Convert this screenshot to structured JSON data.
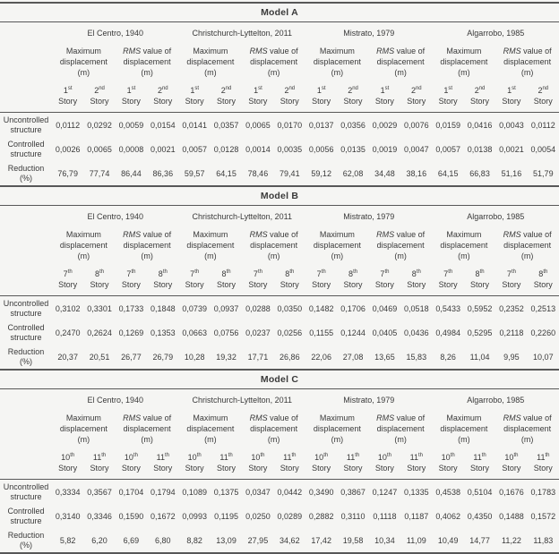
{
  "document": {
    "background_color": "#f5f5f3",
    "text_color": "#3a3a3a",
    "rule_color": "#585858"
  },
  "table": {
    "earthquakes": [
      "El Centro, 1940",
      "Christchurch-Lyttelton, 2011",
      "Mistrato, 1979",
      "Algarrobo, 1985"
    ],
    "measure_headers": [
      {
        "lines": [
          "Maximum",
          "displacement",
          "(m)"
        ],
        "italic_lead": ""
      },
      {
        "lines": [
          "RMS value of",
          "displacement",
          "(m)"
        ],
        "italic_lead": "RMS"
      }
    ],
    "story_word": "Story",
    "row_labels": [
      {
        "lines": [
          "Uncontrolled",
          "structure"
        ]
      },
      {
        "lines": [
          "Controlled",
          "structure"
        ]
      },
      {
        "lines": [
          "Reduction",
          "(%)"
        ]
      }
    ],
    "models": [
      {
        "title": "Model A",
        "stories": [
          {
            "num": "1",
            "suffix": "st"
          },
          {
            "num": "2",
            "suffix": "nd"
          }
        ],
        "rows": [
          {
            "values": [
              "0,0112",
              "0,0292",
              "0,0059",
              "0,0154",
              "0,0141",
              "0,0357",
              "0,0065",
              "0,0170",
              "0,0137",
              "0,0356",
              "0,0029",
              "0,0076",
              "0,0159",
              "0,0416",
              "0,0043",
              "0,0112"
            ]
          },
          {
            "values": [
              "0,0026",
              "0,0065",
              "0,0008",
              "0,0021",
              "0,0057",
              "0,0128",
              "0,0014",
              "0,0035",
              "0,0056",
              "0,0135",
              "0,0019",
              "0,0047",
              "0,0057",
              "0,0138",
              "0,0021",
              "0,0054"
            ]
          },
          {
            "values": [
              "76,79",
              "77,74",
              "86,44",
              "86,36",
              "59,57",
              "64,15",
              "78,46",
              "79,41",
              "59,12",
              "62,08",
              "34,48",
              "38,16",
              "64,15",
              "66,83",
              "51,16",
              "51,79"
            ]
          }
        ]
      },
      {
        "title": "Model B",
        "stories": [
          {
            "num": "7",
            "suffix": "th"
          },
          {
            "num": "8",
            "suffix": "th"
          }
        ],
        "rows": [
          {
            "values": [
              "0,3102",
              "0,3301",
              "0,1733",
              "0,1848",
              "0,0739",
              "0,0937",
              "0,0288",
              "0,0350",
              "0,1482",
              "0,1706",
              "0,0469",
              "0,0518",
              "0,5433",
              "0,5952",
              "0,2352",
              "0,2513"
            ]
          },
          {
            "values": [
              "0,2470",
              "0,2624",
              "0,1269",
              "0,1353",
              "0,0663",
              "0,0756",
              "0,0237",
              "0,0256",
              "0,1155",
              "0,1244",
              "0,0405",
              "0,0436",
              "0,4984",
              "0,5295",
              "0,2118",
              "0,2260"
            ]
          },
          {
            "values": [
              "20,37",
              "20,51",
              "26,77",
              "26,79",
              "10,28",
              "19,32",
              "17,71",
              "26,86",
              "22,06",
              "27,08",
              "13,65",
              "15,83",
              "8,26",
              "11,04",
              "9,95",
              "10,07"
            ]
          }
        ]
      },
      {
        "title": "Model C",
        "stories": [
          {
            "num": "10",
            "suffix": "th"
          },
          {
            "num": "11",
            "suffix": "th"
          }
        ],
        "rows": [
          {
            "values": [
              "0,3334",
              "0,3567",
              "0,1704",
              "0,1794",
              "0,1089",
              "0,1375",
              "0,0347",
              "0,0442",
              "0,3490",
              "0,3867",
              "0,1247",
              "0,1335",
              "0,4538",
              "0,5104",
              "0,1676",
              "0,1783"
            ]
          },
          {
            "values": [
              "0,3140",
              "0,3346",
              "0,1590",
              "0,1672",
              "0,0993",
              "0,1195",
              "0,0250",
              "0,0289",
              "0,2882",
              "0,3110",
              "0,1118",
              "0,1187",
              "0,4062",
              "0,4350",
              "0,1488",
              "0,1572"
            ]
          },
          {
            "values": [
              "5,82",
              "6,20",
              "6,69",
              "6,80",
              "8,82",
              "13,09",
              "27,95",
              "34,62",
              "17,42",
              "19,58",
              "10,34",
              "11,09",
              "10,49",
              "14,77",
              "11,22",
              "11,83"
            ]
          }
        ]
      }
    ]
  }
}
